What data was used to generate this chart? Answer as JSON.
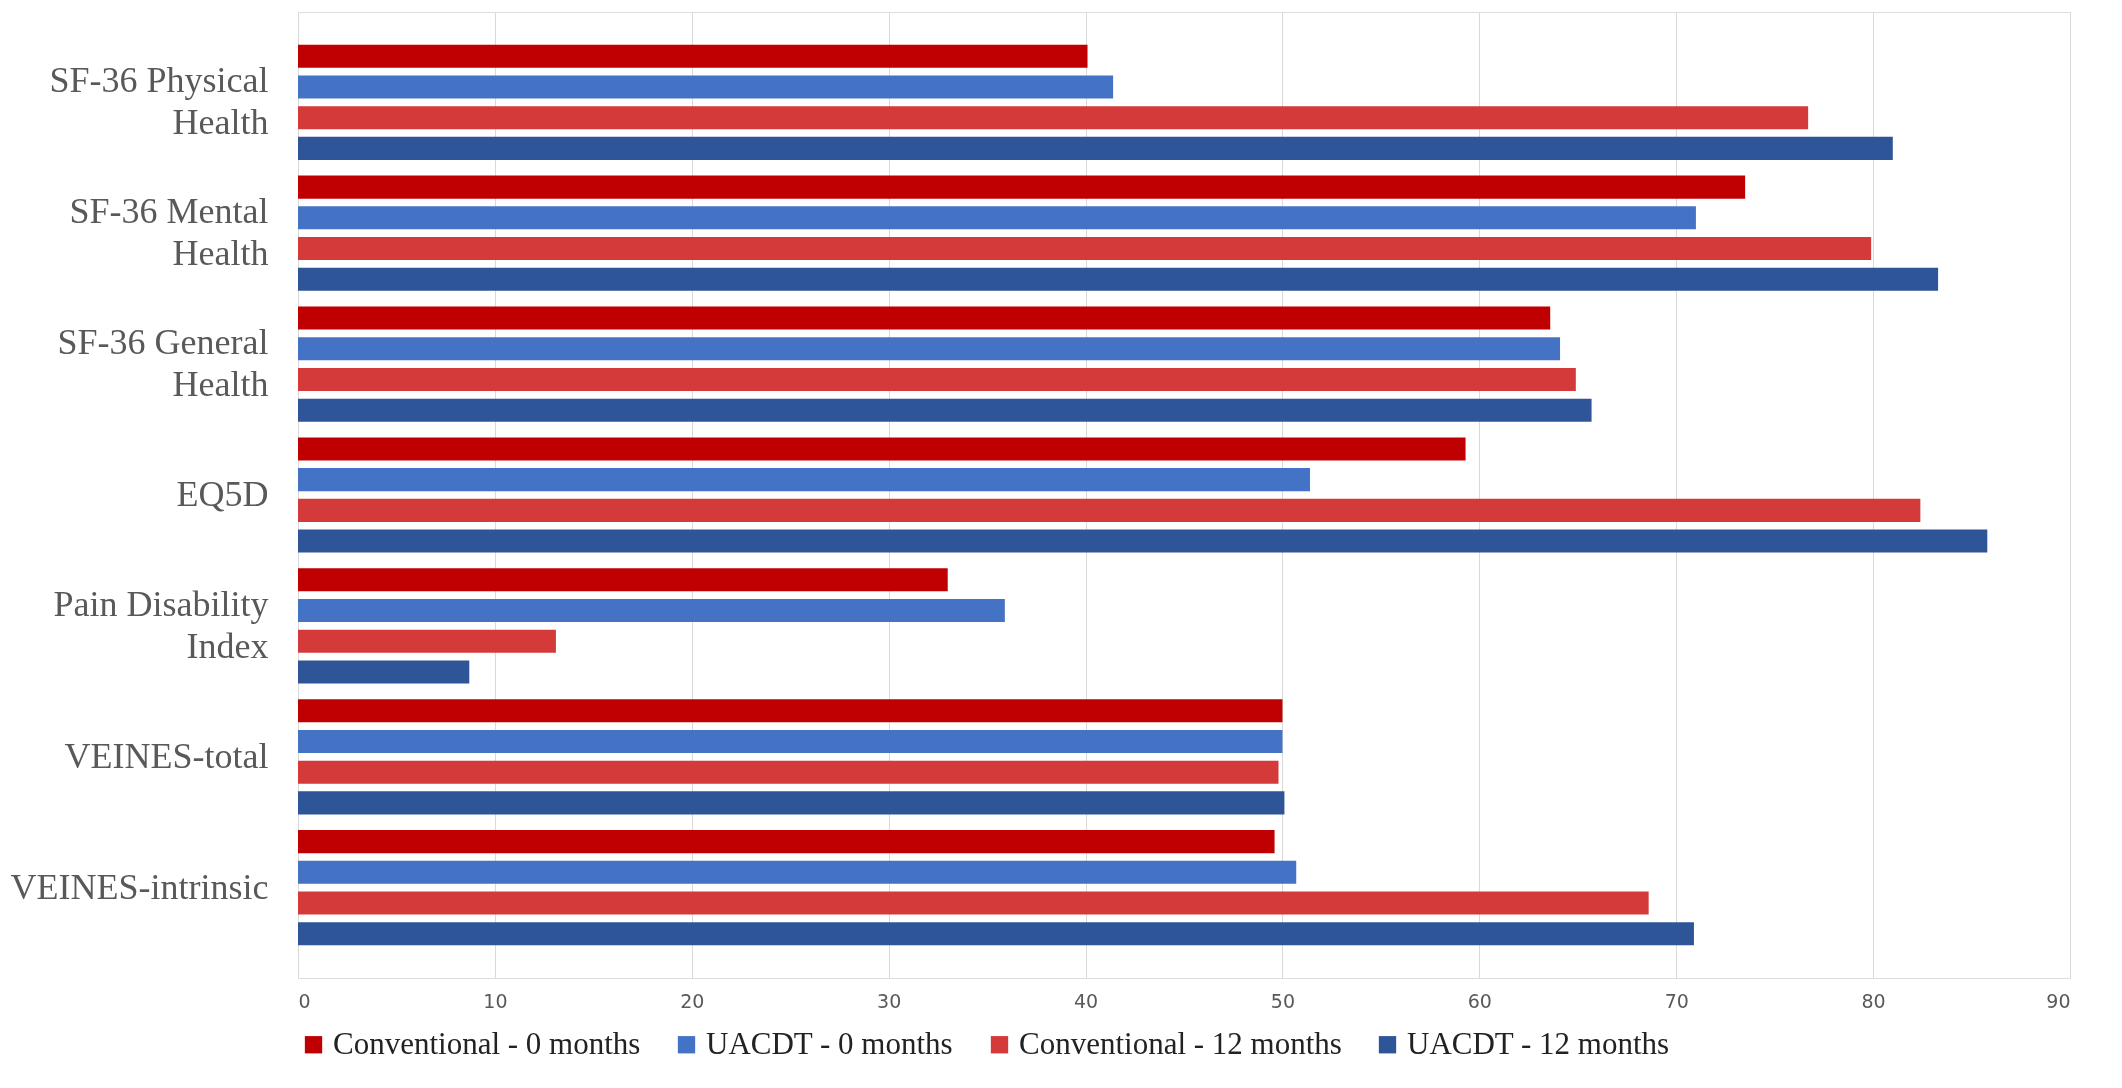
{
  "chart_data": {
    "type": "bar",
    "orientation": "horizontal",
    "categories": [
      "SF-36 Physical Health",
      "SF-36 Mental Health",
      "SF-36 General Health",
      "EQ5D",
      "Pain Disability Index",
      "VEINES-total",
      "VEINES-intrinsic"
    ],
    "series": [
      {
        "name": "Conventional - 0 months",
        "color": "#c00000",
        "values": [
          40.1,
          73.5,
          63.6,
          59.3,
          33.0,
          50.0,
          49.6
        ]
      },
      {
        "name": "UACDT - 0 months",
        "color": "#4472c4",
        "values": [
          41.4,
          71.0,
          64.1,
          51.4,
          35.9,
          50.0,
          50.7
        ]
      },
      {
        "name": "Conventional - 12 months",
        "color": "#d43a3a",
        "values": [
          76.7,
          79.9,
          64.9,
          82.4,
          13.1,
          49.8,
          68.6
        ]
      },
      {
        "name": "UACDT - 12 months",
        "color": "#2e5597",
        "values": [
          81.0,
          83.3,
          65.7,
          85.8,
          8.7,
          50.1,
          70.9
        ]
      }
    ],
    "xlim": [
      0,
      90
    ],
    "xticks": [
      0,
      10,
      20,
      30,
      40,
      50,
      60,
      70,
      80,
      90
    ],
    "grid": "x",
    "legend": "bottom"
  }
}
